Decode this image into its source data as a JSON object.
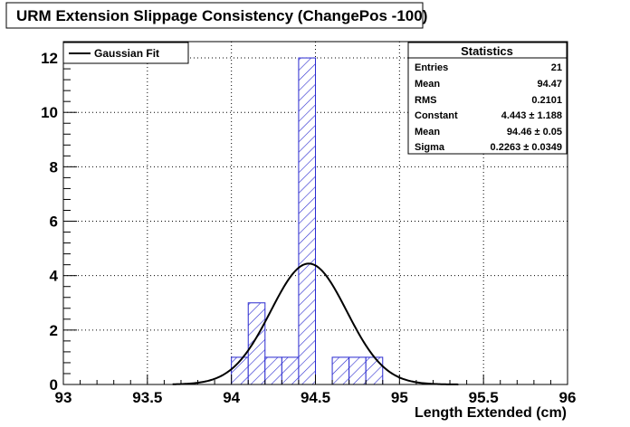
{
  "chart_data": {
    "type": "bar",
    "title": "URM Extension Slippage Consistency (ChangePos -100)",
    "xlabel": "Length Extended (cm)",
    "ylabel": "",
    "xlim": [
      93,
      96
    ],
    "ylim": [
      0,
      12.6
    ],
    "x_ticks": [
      "93",
      "93.5",
      "94",
      "94.5",
      "95",
      "95.5",
      "96"
    ],
    "y_ticks": [
      "0",
      "2",
      "4",
      "6",
      "8",
      "10",
      "12"
    ],
    "bin_width": 0.1,
    "bins": [
      {
        "x_low": 93.9,
        "x_high": 94.0,
        "count": 0
      },
      {
        "x_low": 94.0,
        "x_high": 94.1,
        "count": 1
      },
      {
        "x_low": 94.1,
        "x_high": 94.2,
        "count": 3
      },
      {
        "x_low": 94.2,
        "x_high": 94.3,
        "count": 1
      },
      {
        "x_low": 94.3,
        "x_high": 94.4,
        "count": 1
      },
      {
        "x_low": 94.4,
        "x_high": 94.5,
        "count": 12
      },
      {
        "x_low": 94.5,
        "x_high": 94.6,
        "count": 0
      },
      {
        "x_low": 94.6,
        "x_high": 94.7,
        "count": 1
      },
      {
        "x_low": 94.7,
        "x_high": 94.8,
        "count": 1
      },
      {
        "x_low": 94.8,
        "x_high": 94.9,
        "count": 1
      }
    ],
    "fit": {
      "name": "Gaussian Fit",
      "constant": 4.443,
      "mean": 94.46,
      "sigma": 0.2263
    },
    "grid": true,
    "legend": {
      "position": "top-left",
      "entries": [
        "Gaussian Fit"
      ]
    },
    "colors": {
      "bar_line": "#2a2ad0",
      "fit_line": "#000000"
    }
  },
  "stats": {
    "title": "Statistics",
    "rows": [
      {
        "label": "Entries",
        "value": "21"
      },
      {
        "label": "Mean",
        "value": "94.47"
      },
      {
        "label": "RMS",
        "value": "0.2101"
      },
      {
        "label": "Constant",
        "value": "4.443 ± 1.188"
      },
      {
        "label": "Mean",
        "value": "94.46 ± 0.05"
      },
      {
        "label": "Sigma",
        "value": "0.2263 ± 0.0349"
      }
    ]
  }
}
